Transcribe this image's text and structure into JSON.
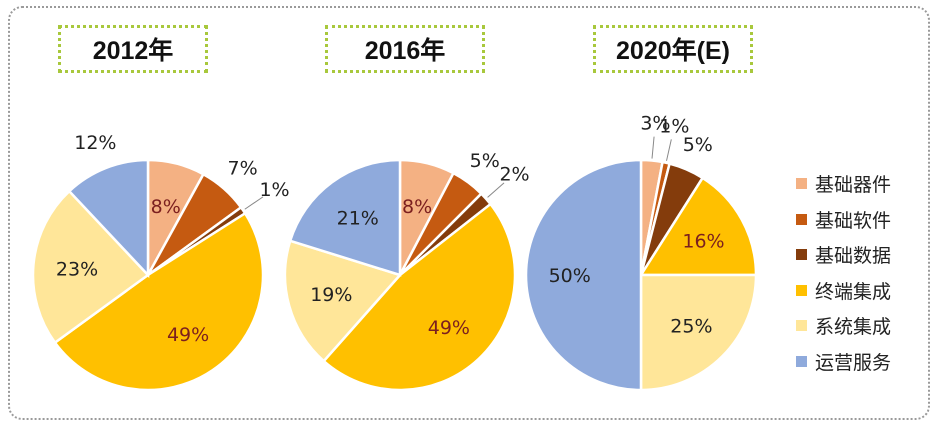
{
  "chart_data": [
    {
      "type": "pie",
      "title": "2012年",
      "categories": [
        "基础器件",
        "基础软件",
        "基础数据",
        "终端集成",
        "系统集成",
        "运营服务"
      ],
      "values": [
        8,
        7,
        1,
        49,
        23,
        12
      ],
      "labels": [
        "8%",
        "7%",
        "1%",
        "49%",
        "23%",
        "12%"
      ]
    },
    {
      "type": "pie",
      "title": "2016年",
      "categories": [
        "基础器件",
        "基础软件",
        "基础数据",
        "终端集成",
        "系统集成",
        "运营服务"
      ],
      "values": [
        8,
        5,
        2,
        49,
        19,
        21
      ],
      "labels": [
        "8%",
        "5%",
        "2%",
        "49%",
        "19%",
        "21%"
      ]
    },
    {
      "type": "pie",
      "title": "2020年(E)",
      "categories": [
        "基础器件",
        "基础软件",
        "基础数据",
        "终端集成",
        "系统集成",
        "运营服务"
      ],
      "values": [
        3,
        1,
        5,
        16,
        25,
        50
      ],
      "labels": [
        "3%",
        "1%",
        "5%",
        "16%",
        "25%",
        "50%"
      ]
    }
  ],
  "legend": [
    {
      "label": "基础器件",
      "color": "#f4b183"
    },
    {
      "label": "基础软件",
      "color": "#c55a11"
    },
    {
      "label": "基础数据",
      "color": "#843c0c"
    },
    {
      "label": "终端集成",
      "color": "#ffc000"
    },
    {
      "label": "系统集成",
      "color": "#ffe699"
    },
    {
      "label": "运营服务",
      "color": "#8faadc"
    }
  ],
  "label_colors": [
    "#7b1f1f",
    "#222222",
    "#222222",
    "#7b1f1f",
    "#222222",
    "#222222"
  ]
}
